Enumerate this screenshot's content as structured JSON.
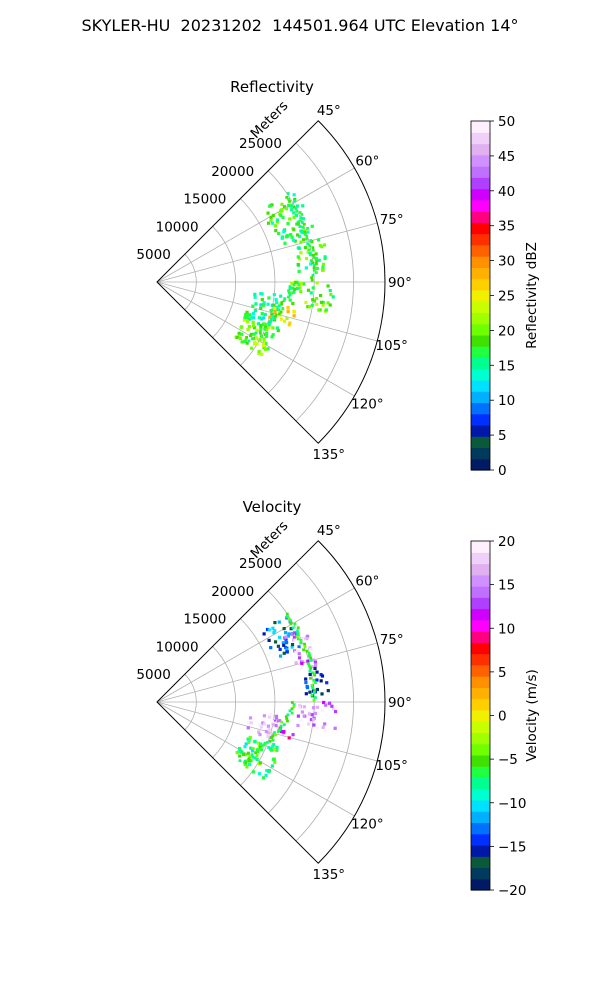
{
  "title": "SKYLER-HU  20231202  144501.964 UTC Elevation 14°",
  "panels": [
    {
      "title": "Reflectivity",
      "range_label": "Meters",
      "range_ticks": [
        "5000",
        "10000",
        "15000",
        "20000",
        "25000"
      ],
      "angle_ticks": [
        "45°",
        "60°",
        "75°",
        "90°",
        "105°",
        "120°",
        "135°"
      ],
      "colorbar": {
        "label": "Reflectivity dBZ",
        "ticks": [
          "0",
          "5",
          "10",
          "15",
          "20",
          "25",
          "30",
          "35",
          "40",
          "45",
          "50"
        ],
        "min": 0,
        "max": 50,
        "colors": [
          "#001a66",
          "#003a5c",
          "#0a5a3a",
          "#0018a8",
          "#0030ff",
          "#0070ff",
          "#00b0ff",
          "#00e0ff",
          "#00ffd0",
          "#00ff90",
          "#20ff40",
          "#40e000",
          "#70ff00",
          "#a0ff00",
          "#c8ff00",
          "#f0f000",
          "#ffd000",
          "#ffb000",
          "#ff9000",
          "#ff6000",
          "#ff3000",
          "#ff0000",
          "#ff0080",
          "#ff00ff",
          "#d000ff",
          "#b040ff",
          "#c070ff",
          "#d090ff",
          "#e0b0f0",
          "#f0d0f8",
          "#fff0ff"
        ]
      }
    },
    {
      "title": "Velocity",
      "range_label": "Meters",
      "range_ticks": [
        "5000",
        "10000",
        "15000",
        "20000",
        "25000"
      ],
      "angle_ticks": [
        "45°",
        "60°",
        "75°",
        "90°",
        "105°",
        "120°",
        "135°"
      ],
      "colorbar": {
        "label": "Velocity (m/s)",
        "ticks": [
          "−20",
          "−15",
          "−10",
          "−5",
          "0",
          "5",
          "10",
          "15",
          "20"
        ],
        "min": -20,
        "max": 20,
        "colors": [
          "#001a66",
          "#003a5c",
          "#0a5a3a",
          "#0018a8",
          "#0030ff",
          "#0070ff",
          "#00b0ff",
          "#00e0ff",
          "#00ffd0",
          "#00ff90",
          "#20ff40",
          "#40e000",
          "#70ff00",
          "#a0ff00",
          "#c8ff00",
          "#f0f000",
          "#ffd000",
          "#ffb000",
          "#ff9000",
          "#ff6000",
          "#ff3000",
          "#ff0000",
          "#ff0080",
          "#ff00ff",
          "#d000ff",
          "#b040ff",
          "#c070ff",
          "#d090ff",
          "#e0b0f0",
          "#f0d0f8",
          "#fff0ff"
        ]
      }
    }
  ],
  "chart_data": [
    {
      "type": "heatmap",
      "title": "Reflectivity",
      "projection": "polar sector",
      "theta_range_deg": [
        45,
        135
      ],
      "r_range_m": [
        0,
        29000
      ],
      "r_ticks_m": [
        5000,
        10000,
        15000,
        20000,
        25000
      ],
      "theta_ticks_deg": [
        45,
        60,
        75,
        90,
        105,
        120,
        135
      ],
      "colorbar_label": "Reflectivity dBZ",
      "vmin": 0,
      "vmax": 50,
      "echo_regions": [
        {
          "theta_deg": [
            56,
            74
          ],
          "r_m": [
            16000,
            21000
          ],
          "value_dbz": 17
        },
        {
          "theta_deg": [
            74,
            86
          ],
          "r_m": [
            18000,
            22000
          ],
          "value_dbz": 18
        },
        {
          "theta_deg": [
            90,
            100
          ],
          "r_m": [
            17000,
            23000
          ],
          "value_dbz": 19
        },
        {
          "theta_deg": [
            96,
            113
          ],
          "r_m": [
            12000,
            16000
          ],
          "value_dbz": 16
        },
        {
          "theta_deg": [
            100,
            108
          ],
          "r_m": [
            15000,
            18000
          ],
          "value_dbz": 24
        },
        {
          "theta_deg": [
            110,
            126
          ],
          "r_m": [
            12000,
            17000
          ],
          "value_dbz": 20
        }
      ]
    },
    {
      "type": "heatmap",
      "title": "Velocity",
      "projection": "polar sector",
      "theta_range_deg": [
        45,
        135
      ],
      "r_range_m": [
        0,
        29000
      ],
      "r_ticks_m": [
        5000,
        10000,
        15000,
        20000,
        25000
      ],
      "theta_ticks_deg": [
        45,
        60,
        75,
        90,
        105,
        120,
        135
      ],
      "colorbar_label": "Velocity (m/s)",
      "vmin": -20,
      "vmax": 20,
      "echo_regions": [
        {
          "theta_deg": [
            56,
            70
          ],
          "r_m": [
            16000,
            20000
          ],
          "value_ms": -13
        },
        {
          "theta_deg": [
            62,
            78
          ],
          "r_m": [
            18000,
            21000
          ],
          "value_ms": 16
        },
        {
          "theta_deg": [
            78,
            88
          ],
          "r_m": [
            19000,
            22000
          ],
          "value_ms": -16
        },
        {
          "theta_deg": [
            90,
            100
          ],
          "r_m": [
            18000,
            23000
          ],
          "value_ms": 16
        },
        {
          "theta_deg": [
            96,
            110
          ],
          "r_m": [
            12000,
            16000
          ],
          "value_ms": 17
        },
        {
          "theta_deg": [
            102,
            106
          ],
          "r_m": [
            16000,
            18000
          ],
          "value_ms": 10
        },
        {
          "theta_deg": [
            110,
            126
          ],
          "r_m": [
            12000,
            17000
          ],
          "value_ms": -6
        }
      ]
    }
  ]
}
